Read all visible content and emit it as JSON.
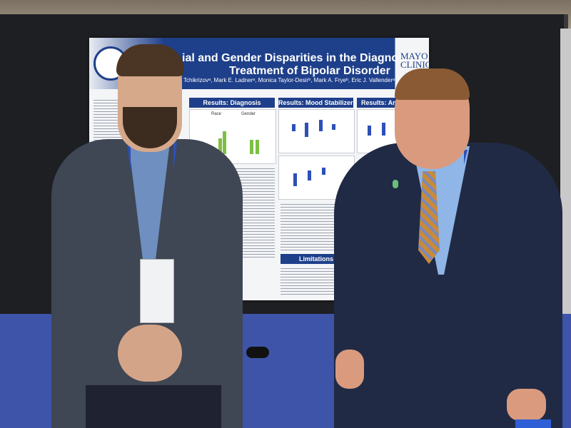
{
  "poster": {
    "title_line1": "ial and Gender Disparities in the Diagnosis and",
    "title_line2": "Treatment of Bipolar Disorder",
    "authors": "Tchikrizovᵃ, Mark E. Ladnerᵃ, Monica Taylor-Desirᵇ, Mark A. Fryeᵇ, Eric J. Vallenderᵃ",
    "logo_text": "MAYO CLINIC",
    "sections": {
      "diagnosis": "Results: Diagnosis",
      "mood_stabilizers": "Results: Mood Stabilizers",
      "anti": "Results: Anti",
      "limitations": "Limitations"
    },
    "chart_labels": {
      "race": "Race",
      "gender": "Gender"
    }
  },
  "colors": {
    "poster_header": "#1e3f8a",
    "carpet": "#3d54a8",
    "chart_green": "#7cc043",
    "chart_blue": "#2d4fb8"
  }
}
